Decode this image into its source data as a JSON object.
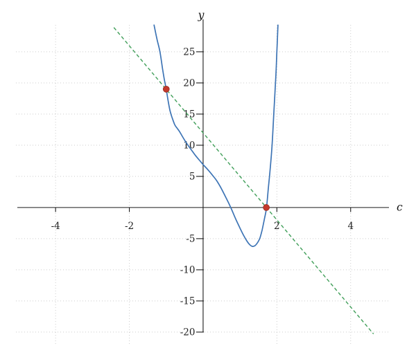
{
  "chart_data": {
    "type": "line",
    "title": "",
    "xlabel": "c",
    "ylabel": "y",
    "xlim": [
      -5.05,
      5.02
    ],
    "ylim": [
      -21.9,
      29.65
    ],
    "x_ticks": [
      -4,
      -2,
      2,
      4
    ],
    "y_ticks": [
      25,
      20,
      15,
      10,
      5,
      -5,
      -10,
      -15,
      -20
    ],
    "grid": true,
    "grid_color": "#cccccc",
    "axis_color": "#1a1a1a",
    "tick_label_color": "#222222",
    "legend": "none",
    "series": [
      {
        "name": "function-curve",
        "kind": "curve",
        "style": "solid",
        "color": "#3d74b5",
        "points": [
          [
            -1.33,
            29.3
          ],
          [
            -1.25,
            27.0
          ],
          [
            -1.17,
            25.0
          ],
          [
            -1.1,
            22.3
          ],
          [
            -1.05,
            20.5
          ],
          [
            -1.0,
            19.0
          ],
          [
            -0.95,
            17.2
          ],
          [
            -0.9,
            15.6
          ],
          [
            -0.85,
            14.6
          ],
          [
            -0.77,
            13.3
          ],
          [
            -0.7,
            12.7
          ],
          [
            -0.64,
            12.2
          ],
          [
            -0.52,
            11.0
          ],
          [
            -0.41,
            10.0
          ],
          [
            -0.3,
            9.1
          ],
          [
            -0.2,
            8.3
          ],
          [
            -0.1,
            7.6
          ],
          [
            0.0,
            6.9
          ],
          [
            0.14,
            6.0
          ],
          [
            0.28,
            5.0
          ],
          [
            0.38,
            4.2
          ],
          [
            0.47,
            3.3
          ],
          [
            0.61,
            1.7
          ],
          [
            0.75,
            0.0
          ],
          [
            0.88,
            -1.8
          ],
          [
            1.0,
            -3.3
          ],
          [
            1.1,
            -4.5
          ],
          [
            1.2,
            -5.5
          ],
          [
            1.27,
            -6.0
          ],
          [
            1.34,
            -6.25
          ],
          [
            1.41,
            -6.1
          ],
          [
            1.48,
            -5.6
          ],
          [
            1.54,
            -4.9
          ],
          [
            1.6,
            -3.6
          ],
          [
            1.67,
            -1.6
          ],
          [
            1.72,
            0.0
          ],
          [
            1.77,
            3.2
          ],
          [
            1.81,
            5.6
          ],
          [
            1.87,
            10.0
          ],
          [
            1.92,
            15.5
          ],
          [
            1.97,
            20.8
          ],
          [
            2.0,
            25.0
          ],
          [
            2.03,
            29.3
          ]
        ]
      },
      {
        "name": "dashed-secant-line",
        "kind": "line",
        "style": "dashed",
        "color": "#3f9e58",
        "points": [
          [
            -2.42,
            28.9
          ],
          [
            4.62,
            -20.3
          ]
        ]
      },
      {
        "name": "intersection-points",
        "kind": "scatter",
        "color": "#c33a2c",
        "marker_edge": "#9e2f24",
        "marker_radius": 4.4,
        "points": [
          [
            -1.0,
            19.0
          ],
          [
            1.714,
            0.0
          ]
        ]
      }
    ]
  }
}
